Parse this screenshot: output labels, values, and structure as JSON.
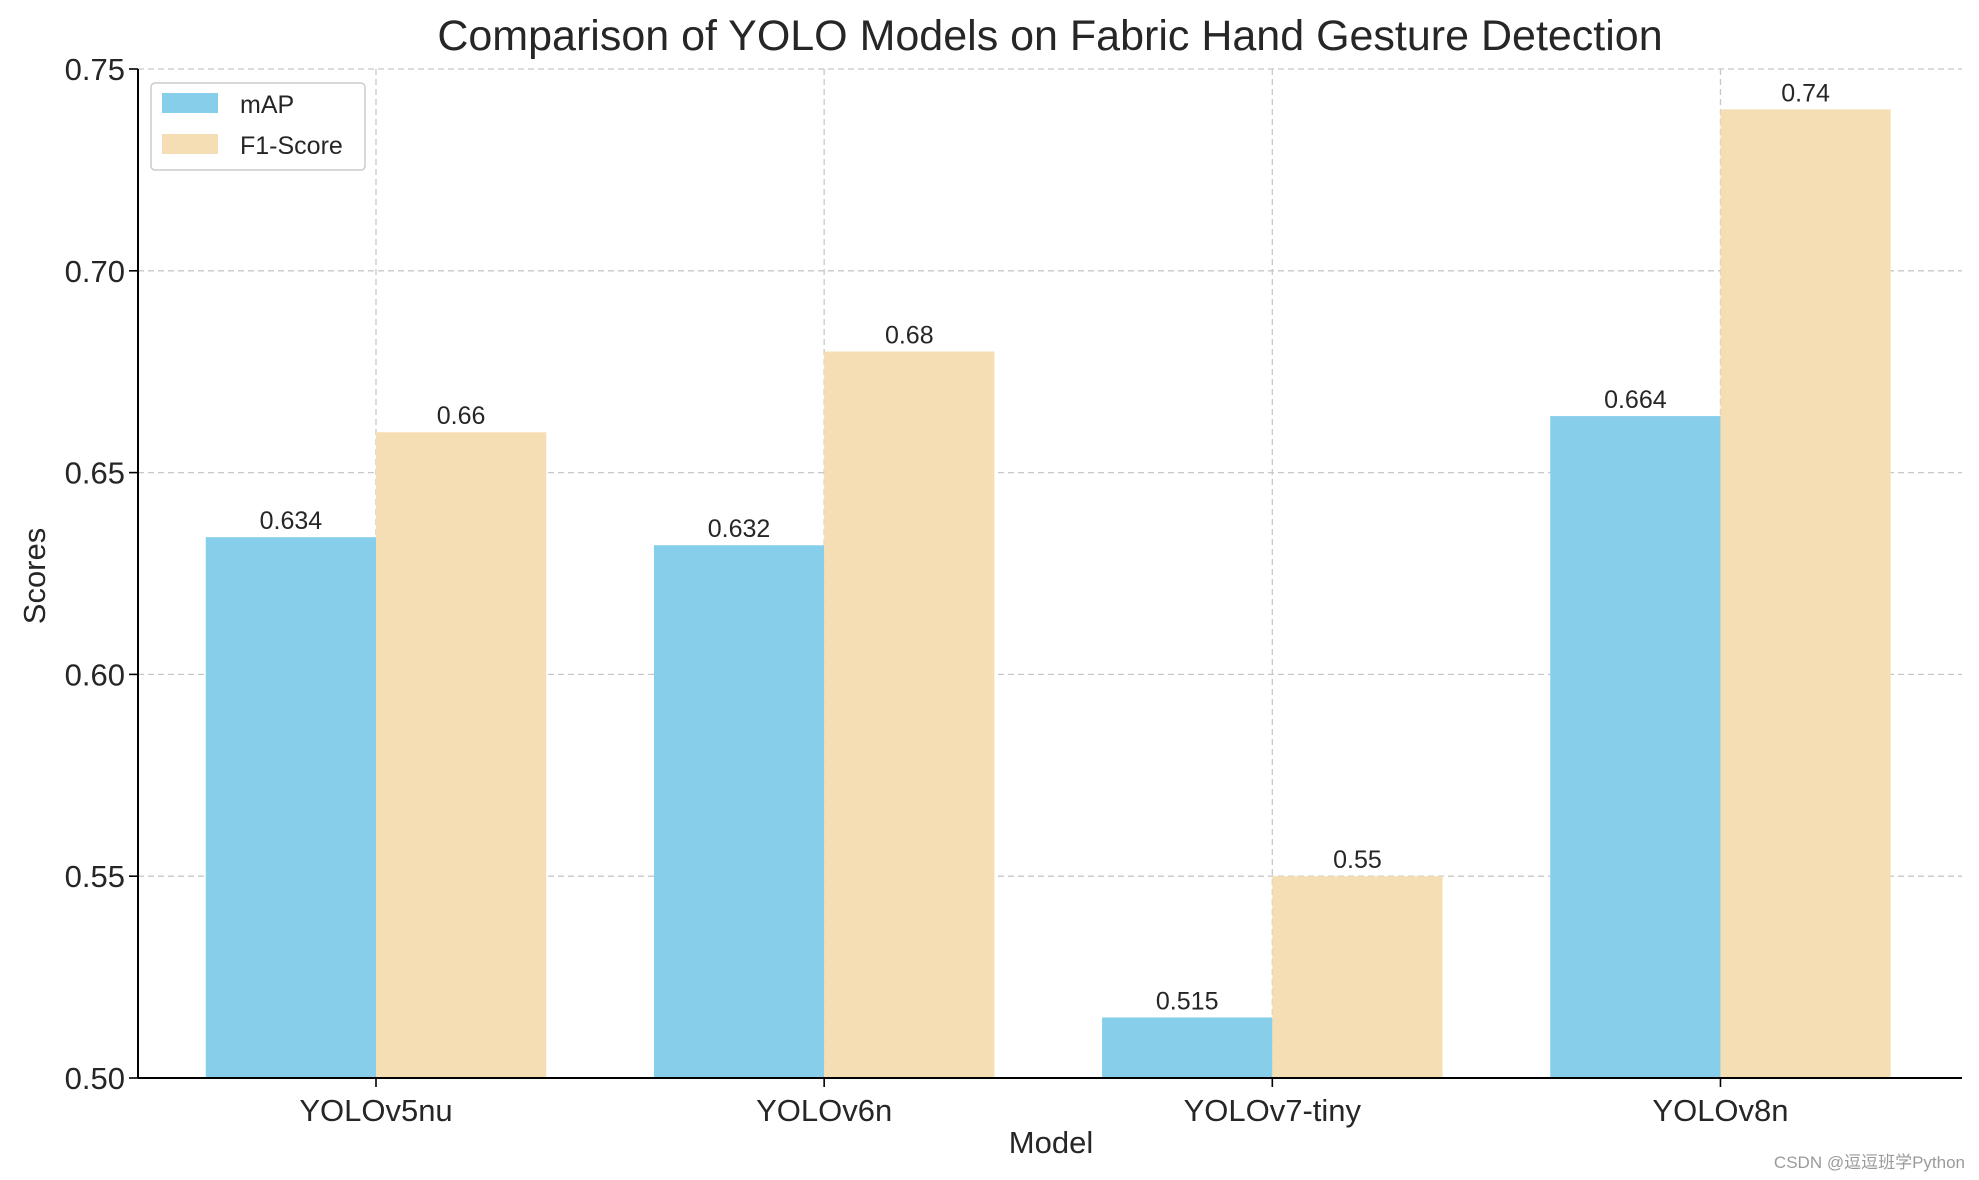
{
  "chart_data": {
    "type": "bar",
    "title": "Comparison of YOLO Models on Fabric Hand Gesture Detection",
    "xlabel": "Model",
    "ylabel": "Scores",
    "categories": [
      "YOLOv5nu",
      "YOLOv6n",
      "YOLOv7-tiny",
      "YOLOv8n"
    ],
    "series": [
      {
        "name": "mAP",
        "values": [
          0.634,
          0.632,
          0.515,
          0.664
        ],
        "labels": [
          "0.634",
          "0.632",
          "0.515",
          "0.664"
        ],
        "color": "#87CEEB"
      },
      {
        "name": "F1-Score",
        "values": [
          0.66,
          0.68,
          0.55,
          0.74
        ],
        "labels": [
          "0.66",
          "0.68",
          "0.55",
          "0.74"
        ],
        "color": "#F5DEB3"
      }
    ],
    "ylim": [
      0.5,
      0.75
    ],
    "yticks": [
      0.5,
      0.55,
      0.6,
      0.65,
      0.7,
      0.75
    ],
    "ytick_labels": [
      "0.50",
      "0.55",
      "0.60",
      "0.65",
      "0.70",
      "0.75"
    ],
    "grid": true,
    "legend_position": "top-left"
  },
  "watermark": "CSDN @逗逗班学Python"
}
